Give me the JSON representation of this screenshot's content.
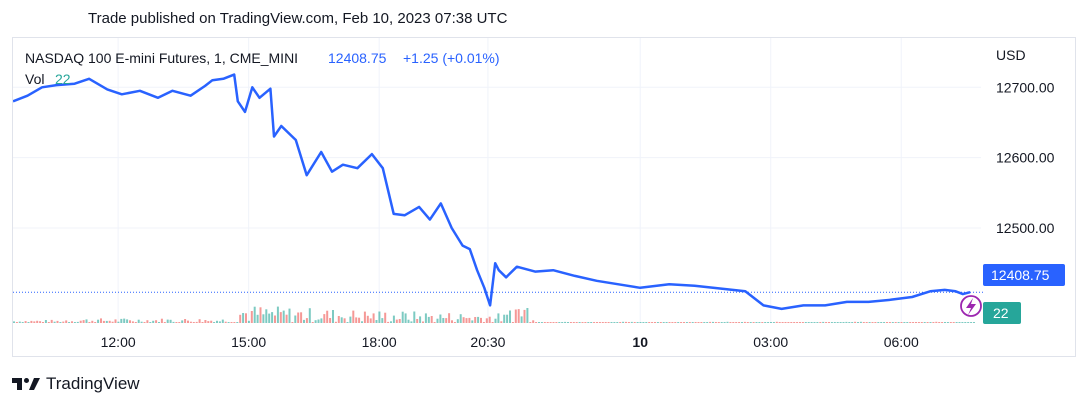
{
  "header": {
    "published": "Trade published on TradingView.com, Feb 10, 2023 07:38 UTC"
  },
  "legend": {
    "symbol": "NASDAQ 100 E-mini Futures, 1, CME_MINI",
    "last": "12408.75",
    "change": "+1.25 (+0.01%)",
    "vol_label": "Vol",
    "vol_value": "22"
  },
  "currency": "USD",
  "price_tag": "12408.75",
  "volume_tag": "22",
  "footer": {
    "brand": "TradingView"
  },
  "colors": {
    "line": "#2962ff",
    "up": "#26a69a",
    "down": "#ef5350",
    "grid": "#f0f3fa",
    "text": "#131722"
  },
  "icons": {
    "logo": "tradingview-logo-icon",
    "alert": "lightning-icon"
  },
  "chart_data": {
    "type": "line",
    "title": "NASDAQ 100 E-mini Futures, 1, CME_MINI",
    "ylabel": "USD",
    "ylim": [
      12365,
      12770
    ],
    "xlim": [
      "2023-02-09 09:35",
      "2023-02-10 07:50"
    ],
    "y_ticks": [
      12500.0,
      12600.0,
      12700.0
    ],
    "x_ticks": [
      {
        "time": "2023-02-09 12:00",
        "label": "12:00"
      },
      {
        "time": "2023-02-09 15:00",
        "label": "15:00"
      },
      {
        "time": "2023-02-09 18:00",
        "label": "18:00"
      },
      {
        "time": "2023-02-09 20:30",
        "label": "20:30"
      },
      {
        "time": "2023-02-10 00:00",
        "label": "10"
      },
      {
        "time": "2023-02-10 03:00",
        "label": "03:00"
      },
      {
        "time": "2023-02-10 06:00",
        "label": "06:00"
      }
    ],
    "last_price": 12408.75,
    "grid": true,
    "series": [
      {
        "x": [
          "2023-02-09 09:35",
          "2023-02-09 09:55",
          "2023-02-09 10:15",
          "2023-02-09 10:35",
          "2023-02-09 11:00",
          "2023-02-09 11:20",
          "2023-02-09 11:45",
          "2023-02-09 12:05",
          "2023-02-09 12:30",
          "2023-02-09 12:55",
          "2023-02-09 13:15",
          "2023-02-09 13:40",
          "2023-02-09 14:00",
          "2023-02-09 14:10",
          "2023-02-09 14:25",
          "2023-02-09 14:40",
          "2023-02-09 14:45",
          "2023-02-09 14:55",
          "2023-02-09 15:05",
          "2023-02-09 15:15",
          "2023-02-09 15:30",
          "2023-02-09 15:35",
          "2023-02-09 15:45",
          "2023-02-09 16:05",
          "2023-02-09 16:20",
          "2023-02-09 16:40",
          "2023-02-09 16:55",
          "2023-02-09 17:10",
          "2023-02-09 17:30",
          "2023-02-09 17:50",
          "2023-02-09 18:05",
          "2023-02-09 18:20",
          "2023-02-09 18:35",
          "2023-02-09 18:55",
          "2023-02-09 19:10",
          "2023-02-09 19:25",
          "2023-02-09 19:40",
          "2023-02-09 19:55",
          "2023-02-09 20:05",
          "2023-02-09 20:15",
          "2023-02-09 20:25",
          "2023-02-09 20:33",
          "2023-02-09 20:40",
          "2023-02-09 20:45",
          "2023-02-09 20:55",
          "2023-02-09 21:10",
          "2023-02-09 21:35",
          "2023-02-09 22:00",
          "2023-02-09 22:30",
          "2023-02-09 23:00",
          "2023-02-09 23:30",
          "2023-02-10 00:00",
          "2023-02-10 00:40",
          "2023-02-10 01:15",
          "2023-02-10 01:50",
          "2023-02-10 02:25",
          "2023-02-10 02:50",
          "2023-02-10 03:15",
          "2023-02-10 03:45",
          "2023-02-10 04:15",
          "2023-02-10 04:45",
          "2023-02-10 05:15",
          "2023-02-10 05:45",
          "2023-02-10 06:15",
          "2023-02-10 06:40",
          "2023-02-10 07:00",
          "2023-02-10 07:15",
          "2023-02-10 07:25",
          "2023-02-10 07:35"
        ],
        "y": [
          12680,
          12688,
          12700,
          12703,
          12705,
          12712,
          12697,
          12690,
          12695,
          12685,
          12695,
          12688,
          12702,
          12710,
          12712,
          12718,
          12680,
          12665,
          12700,
          12685,
          12698,
          12630,
          12645,
          12625,
          12575,
          12608,
          12580,
          12590,
          12585,
          12605,
          12585,
          12520,
          12518,
          12530,
          12512,
          12535,
          12500,
          12475,
          12470,
          12440,
          12415,
          12390,
          12450,
          12440,
          12430,
          12445,
          12438,
          12440,
          12432,
          12425,
          12420,
          12415,
          12420,
          12418,
          12414,
          12410,
          12390,
          12385,
          12390,
          12390,
          12395,
          12395,
          12398,
          12402,
          12410,
          12412,
          12410,
          12406,
          12408.75
        ]
      }
    ],
    "volume": {
      "note": "per-minute volume bars (scaled 0-100, max ≈ mid-afternoon spike)",
      "values_peak_time": "2023-02-09 14:45"
    }
  }
}
